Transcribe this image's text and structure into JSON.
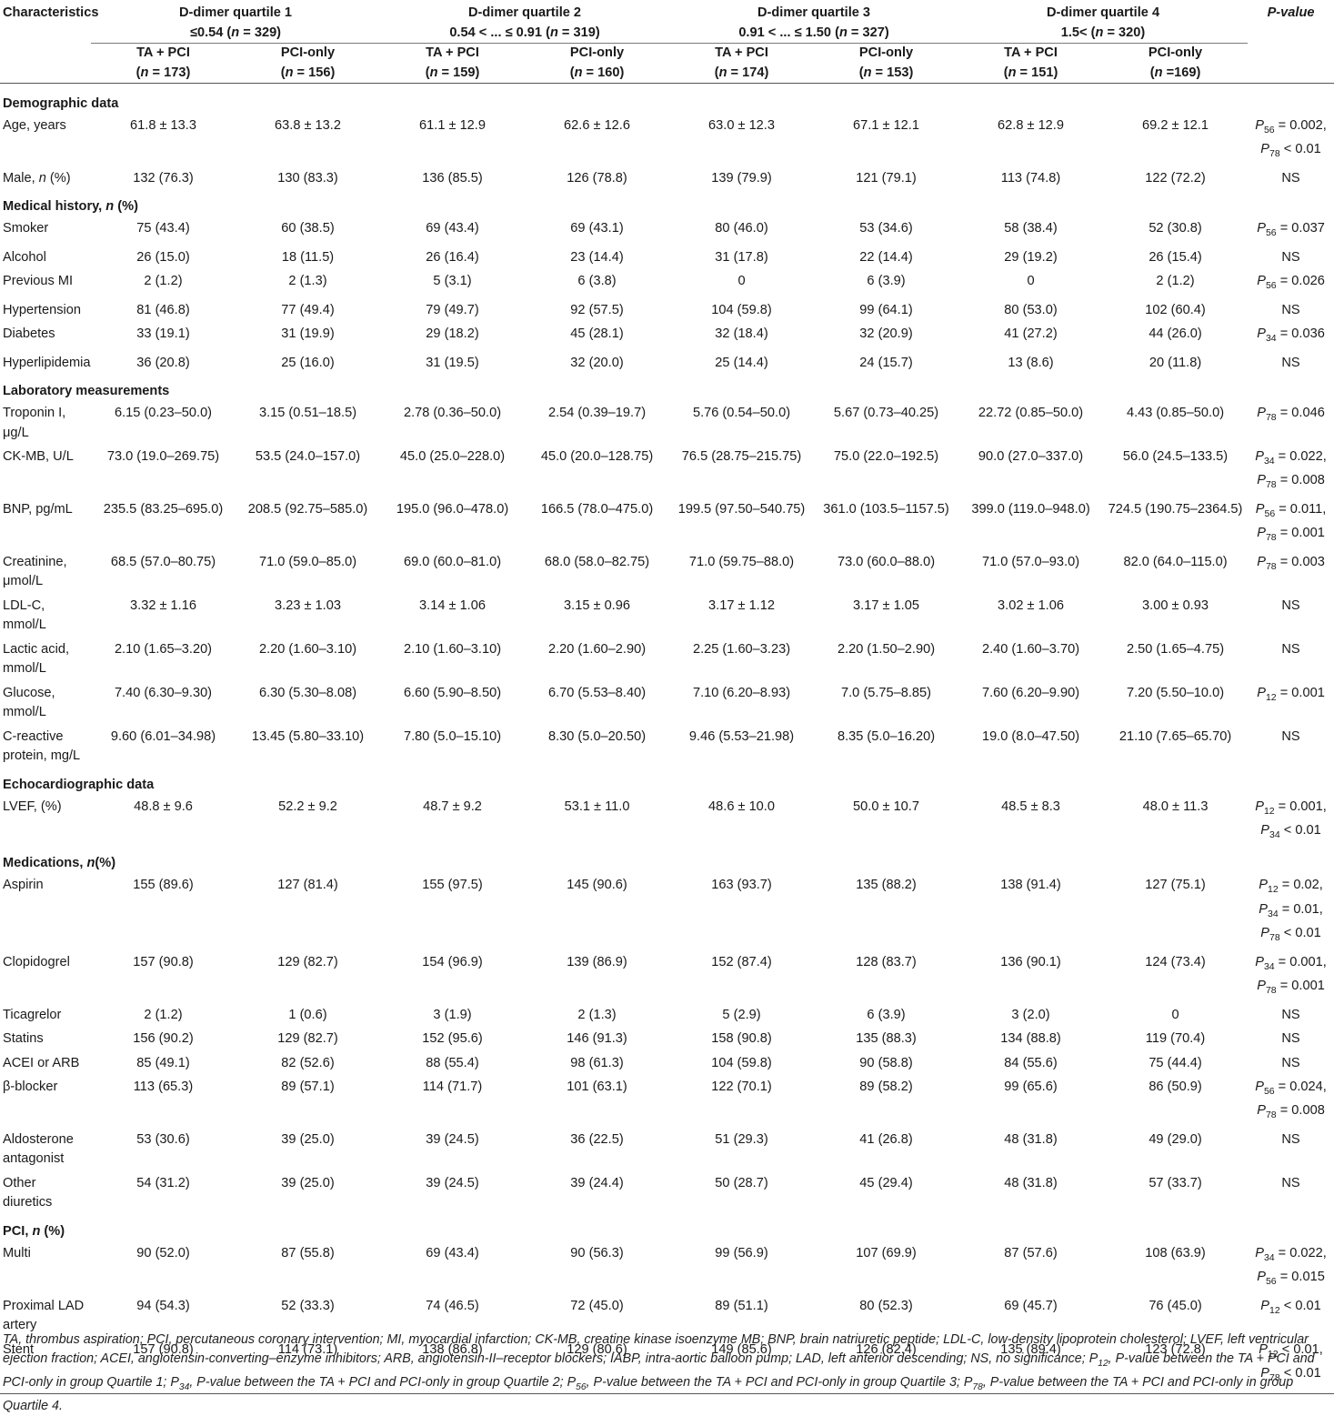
{
  "header": {
    "characteristics": "Characteristics",
    "p_value": "P-value",
    "groups": [
      {
        "title": "D-dimer quartile 1",
        "range": "≤0.54 (n = 329)"
      },
      {
        "title": "D-dimer quartile 2",
        "range": "0.54 < ... ≤ 0.91 (n = 319)"
      },
      {
        "title": "D-dimer quartile 3",
        "range": "0.91 < ... ≤ 1.50 (n = 327)"
      },
      {
        "title": "D-dimer quartile 4",
        "range": "1.5< (n = 320)"
      }
    ],
    "subgroups": [
      {
        "label": "TA + PCI",
        "n": "(n = 173)"
      },
      {
        "label": "PCI-only",
        "n": "(n = 156)"
      },
      {
        "label": "TA + PCI",
        "n": "(n = 159)"
      },
      {
        "label": "PCI-only",
        "n": "(n = 160)"
      },
      {
        "label": "TA + PCI",
        "n": "(n = 174)"
      },
      {
        "label": "PCI-only",
        "n": "(n = 153)"
      },
      {
        "label": "TA + PCI",
        "n": "(n = 151)"
      },
      {
        "label": "PCI-only",
        "n": "(n =169)"
      }
    ]
  },
  "sections": [
    {
      "title": "Demographic data",
      "rows": [
        {
          "label": "Age, years",
          "values": [
            "61.8 ± 13.3",
            "63.8 ± 13.2",
            "61.1 ± 12.9",
            "62.6 ± 12.6",
            "63.0 ± 12.3",
            "67.1 ± 12.1",
            "62.8 ± 12.9",
            "69.2 ± 12.1"
          ],
          "p": "P56 = 0.002,\nP78 < 0.01"
        },
        {
          "label": "Male, n (%)",
          "values": [
            "132 (76.3)",
            "130 (83.3)",
            "136 (85.5)",
            "126 (78.8)",
            "139 (79.9)",
            "121 (79.1)",
            "113 (74.8)",
            "122 (72.2)"
          ],
          "p": "NS"
        }
      ]
    },
    {
      "title": "Medical history, n (%)",
      "rows": [
        {
          "label": "Smoker",
          "values": [
            "75 (43.4)",
            "60 (38.5)",
            "69 (43.4)",
            "69 (43.1)",
            "80 (46.0)",
            "53 (34.6)",
            "58 (38.4)",
            "52 (30.8)"
          ],
          "p": "P56 = 0.037"
        },
        {
          "label": "Alcohol",
          "values": [
            "26 (15.0)",
            "18 (11.5)",
            "26 (16.4)",
            "23 (14.4)",
            "31 (17.8)",
            "22 (14.4)",
            "29 (19.2)",
            "26 (15.4)"
          ],
          "p": "NS"
        },
        {
          "label": "Previous MI",
          "values": [
            "2 (1.2)",
            "2 (1.3)",
            "5 (3.1)",
            "6 (3.8)",
            "0",
            "6 (3.9)",
            "0",
            "2 (1.2)"
          ],
          "p": "P56 = 0.026"
        },
        {
          "label": "Hypertension",
          "values": [
            "81 (46.8)",
            "77 (49.4)",
            "79 (49.7)",
            "92 (57.5)",
            "104 (59.8)",
            "99 (64.1)",
            "80 (53.0)",
            "102 (60.4)"
          ],
          "p": "NS"
        },
        {
          "label": "Diabetes",
          "values": [
            "33 (19.1)",
            "31 (19.9)",
            "29 (18.2)",
            "45 (28.1)",
            "32 (18.4)",
            "32 (20.9)",
            "41 (27.2)",
            "44 (26.0)"
          ],
          "p": "P34 = 0.036"
        },
        {
          "label": "Hyperlipidemia",
          "values": [
            "36 (20.8)",
            "25 (16.0)",
            "31 (19.5)",
            "32 (20.0)",
            "25 (14.4)",
            "24 (15.7)",
            "13 (8.6)",
            "20 (11.8)"
          ],
          "p": "NS"
        }
      ]
    },
    {
      "title": "Laboratory measurements",
      "rows": [
        {
          "label": "Troponin I,\nμg/L",
          "values": [
            "6.15 (0.23–50.0)",
            "3.15 (0.51–18.5)",
            "2.78 (0.36–50.0)",
            "2.54 (0.39–19.7)",
            "5.76 (0.54–50.0)",
            "5.67 (0.73–40.25)",
            "22.72 (0.85–50.0)",
            "4.43 (0.85–50.0)"
          ],
          "p": "P78 = 0.046"
        },
        {
          "label": "CK-MB, U/L",
          "values": [
            "73.0 (19.0–269.75)",
            "53.5 (24.0–157.0)",
            "45.0 (25.0–228.0)",
            "45.0 (20.0–128.75)",
            "76.5 (28.75–215.75)",
            "75.0 (22.0–192.5)",
            "90.0 (27.0–337.0)",
            "56.0 (24.5–133.5)"
          ],
          "p": "P34 = 0.022,\nP78 = 0.008"
        },
        {
          "label": "BNP, pg/mL",
          "values": [
            "235.5 (83.25–695.0)",
            "208.5 (92.75–585.0)",
            "195.0 (96.0–478.0)",
            "166.5 (78.0–475.0)",
            "199.5 (97.50–540.75)",
            "361.0 (103.5–1157.5)",
            "399.0 (119.0–948.0)",
            "724.5 (190.75–2364.5)"
          ],
          "p": "P56 = 0.011,\nP78 = 0.001"
        },
        {
          "label": "Creatinine,\nμmol/L",
          "values": [
            "68.5 (57.0–80.75)",
            "71.0 (59.0–85.0)",
            "69.0 (60.0–81.0)",
            "68.0 (58.0–82.75)",
            "71.0 (59.75–88.0)",
            "73.0 (60.0–88.0)",
            "71.0 (57.0–93.0)",
            "82.0 (64.0–115.0)"
          ],
          "p": "P78 = 0.003"
        },
        {
          "label": "LDL-C,\nmmol/L",
          "values": [
            "3.32 ± 1.16",
            "3.23 ± 1.03",
            "3.14 ± 1.06",
            "3.15 ± 0.96",
            "3.17 ± 1.12",
            "3.17 ± 1.05",
            "3.02 ± 1.06",
            "3.00 ± 0.93"
          ],
          "p": "NS"
        },
        {
          "label": "Lactic acid,\nmmol/L",
          "values": [
            "2.10 (1.65–3.20)",
            "2.20 (1.60–3.10)",
            "2.10 (1.60–3.10)",
            "2.20 (1.60–2.90)",
            "2.25 (1.60–3.23)",
            "2.20 (1.50–2.90)",
            "2.40 (1.60–3.70)",
            "2.50 (1.65–4.75)"
          ],
          "p": "NS"
        },
        {
          "label": "Glucose,\nmmol/L",
          "values": [
            "7.40 (6.30–9.30)",
            "6.30 (5.30–8.08)",
            "6.60 (5.90–8.50)",
            "6.70 (5.53–8.40)",
            "7.10 (6.20–8.93)",
            "7.0 (5.75–8.85)",
            "7.60 (6.20–9.90)",
            "7.20 (5.50–10.0)"
          ],
          "p": "P12 = 0.001"
        },
        {
          "label": "C-reactive\nprotein, mg/L",
          "values": [
            "9.60 (6.01–34.98)",
            "13.45 (5.80–33.10)",
            "7.80 (5.0–15.10)",
            "8.30 (5.0–20.50)",
            "9.46 (5.53–21.98)",
            "8.35 (5.0–16.20)",
            "19.0 (8.0–47.50)",
            "21.10 (7.65–65.70)"
          ],
          "p": "NS"
        }
      ]
    },
    {
      "title": "Echocardiographic data",
      "rows": [
        {
          "label": "LVEF, (%)",
          "values": [
            "48.8 ± 9.6",
            "52.2 ± 9.2",
            "48.7 ± 9.2",
            "53.1 ± 11.0",
            "48.6 ± 10.0",
            "50.0 ± 10.7",
            "48.5 ± 8.3",
            "48.0 ± 11.3"
          ],
          "p": "P12 = 0.001,\nP34 < 0.01"
        }
      ]
    },
    {
      "title": "Medications, n(%)",
      "rows": [
        {
          "label": "Aspirin",
          "values": [
            "155 (89.6)",
            "127 (81.4)",
            "155 (97.5)",
            "145 (90.6)",
            "163 (93.7)",
            "135 (88.2)",
            "138 (91.4)",
            "127 (75.1)"
          ],
          "p": "P12 = 0.02,\nP34 = 0.01,\nP78 < 0.01"
        },
        {
          "label": "Clopidogrel",
          "values": [
            "157 (90.8)",
            "129 (82.7)",
            "154 (96.9)",
            "139 (86.9)",
            "152 (87.4)",
            "128 (83.7)",
            "136 (90.1)",
            "124 (73.4)"
          ],
          "p": "P34 = 0.001,\nP78 = 0.001"
        },
        {
          "label": "Ticagrelor",
          "values": [
            "2 (1.2)",
            "1 (0.6)",
            "3 (1.9)",
            "2 (1.3)",
            "5 (2.9)",
            "6 (3.9)",
            "3 (2.0)",
            "0"
          ],
          "p": "NS"
        },
        {
          "label": "Statins",
          "values": [
            "156 (90.2)",
            "129 (82.7)",
            "152 (95.6)",
            "146 (91.3)",
            "158 (90.8)",
            "135 (88.3)",
            "134 (88.8)",
            "119 (70.4)"
          ],
          "p": "NS"
        },
        {
          "label": "ACEI or ARB",
          "values": [
            "85 (49.1)",
            "82 (52.6)",
            "88 (55.4)",
            "98 (61.3)",
            "104 (59.8)",
            "90 (58.8)",
            "84 (55.6)",
            "75 (44.4)"
          ],
          "p": "NS"
        },
        {
          "label": "β-blocker",
          "values": [
            "113 (65.3)",
            "89 (57.1)",
            "114 (71.7)",
            "101 (63.1)",
            "122 (70.1)",
            "89 (58.2)",
            "99 (65.6)",
            "86 (50.9)"
          ],
          "p": "P56 = 0.024,\nP78 = 0.008"
        },
        {
          "label": "Aldosterone\nantagonist",
          "values": [
            "53 (30.6)",
            "39 (25.0)",
            "39 (24.5)",
            "36 (22.5)",
            "51 (29.3)",
            "41 (26.8)",
            "48 (31.8)",
            "49 (29.0)"
          ],
          "p": "NS"
        },
        {
          "label": "Other\ndiuretics",
          "values": [
            "54 (31.2)",
            "39 (25.0)",
            "39 (24.5)",
            "39 (24.4)",
            "50 (28.7)",
            "45 (29.4)",
            "48 (31.8)",
            "57 (33.7)"
          ],
          "p": "NS"
        }
      ]
    },
    {
      "title": "PCI, n (%)",
      "rows": [
        {
          "label": "Multi",
          "values": [
            "90 (52.0)",
            "87 (55.8)",
            "69 (43.4)",
            "90 (56.3)",
            "99 (56.9)",
            "107 (69.9)",
            "87 (57.6)",
            "108 (63.9)"
          ],
          "p": "P34 = 0.022,\nP56 = 0.015"
        },
        {
          "label": "Proximal LAD\nartery",
          "values": [
            "94 (54.3)",
            "52 (33.3)",
            "74 (46.5)",
            "72 (45.0)",
            "89 (51.1)",
            "80 (52.3)",
            "69 (45.7)",
            "76 (45.0)"
          ],
          "p": "P12 < 0.01"
        },
        {
          "label": "Stent",
          "values": [
            "157 (90.8)",
            "114 (73.1)",
            "138 (86.8)",
            "129 (80.6)",
            "149 (85.6)",
            "126 (82.4)",
            "135 (89.4)",
            "123 (72.8)"
          ],
          "p": "P12 < 0.01,\nP78 < 0.01"
        }
      ]
    }
  ],
  "footnote": "TA, thrombus aspiration; PCI, percutaneous coronary intervention; MI, myocardial infarction; CK-MB, creatine kinase isoenzyme MB; BNP, brain natriuretic peptide; LDL-C, low-density lipoprotein cholesterol; LVEF, left ventricular ejection fraction; ACEI, angiotensin-converting–enzyme inhibitors; ARB, angiotensin-II–receptor blockers; IABP, intra-aortic balloon pump; LAD, left anterior descending; NS, no significance; P12, P-value between the TA + PCI and PCI-only in group Quartile 1; P34, P-value between the TA + PCI and PCI-only in group Quartile 2; P56, P-value between the TA + PCI and PCI-only in group Quartile 3; P78, P-value between the TA + PCI and PCI-only in group Quartile 4."
}
